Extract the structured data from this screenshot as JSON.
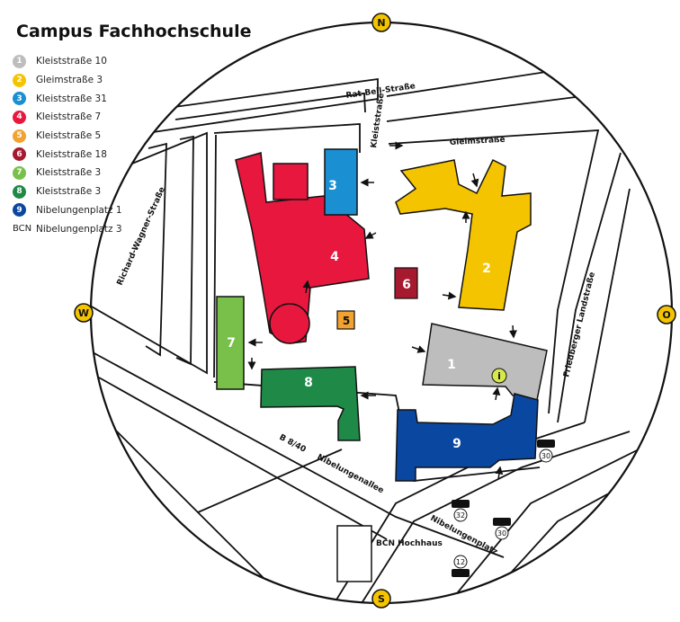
{
  "title": "Campus Fachhochschule",
  "compass": {
    "north": "N",
    "south": "S",
    "west": "W",
    "east": "O"
  },
  "legend": [
    {
      "badge": "1",
      "label": "Kleiststraße 10",
      "color": "#bdbdbd"
    },
    {
      "badge": "2",
      "label": "Gleimstraße 3",
      "color": "#f5c400"
    },
    {
      "badge": "3",
      "label": "Kleiststraße 31",
      "color": "#1a8fd1"
    },
    {
      "badge": "4",
      "label": "Kleiststraße 7",
      "color": "#e8173e"
    },
    {
      "badge": "5",
      "label": "Kleiststraße 5",
      "color": "#f2a22e"
    },
    {
      "badge": "6",
      "label": "Kleiststraße 18",
      "color": "#a6192e"
    },
    {
      "badge": "7",
      "label": "Kleiststraße 3",
      "color": "#78c04a"
    },
    {
      "badge": "8",
      "label": "Kleiststraße 3",
      "color": "#1f8a47"
    },
    {
      "badge": "9",
      "label": "Nibelungenplatz 1",
      "color": "#0a47a0"
    },
    {
      "badge": "BCN",
      "label": "Nibelungenplatz 3",
      "color": ""
    }
  ],
  "streets": {
    "rat_beil": "Rat-Beil-Straße",
    "kleist": "Kleiststraße",
    "gleim": "Gleimstraße",
    "richard_wagner": "Richard-Wagner-Straße",
    "friedberger": "Friedberger Landstraße",
    "b840": "B 8/40",
    "nibelungenallee": "Nibelungenallee",
    "nibelungenplatz": "Nibelungenplatz"
  },
  "buildings": {
    "b1": "1",
    "b2": "2",
    "b3": "3",
    "b4": "4",
    "b5": "5",
    "b6": "6",
    "b7": "7",
    "b8": "8",
    "b9": "9",
    "bcn": "BCN Hochhaus"
  },
  "info_marker": "i",
  "transit": {
    "bus_line": "30",
    "bus_line_b": "32",
    "tram_line": "12"
  }
}
